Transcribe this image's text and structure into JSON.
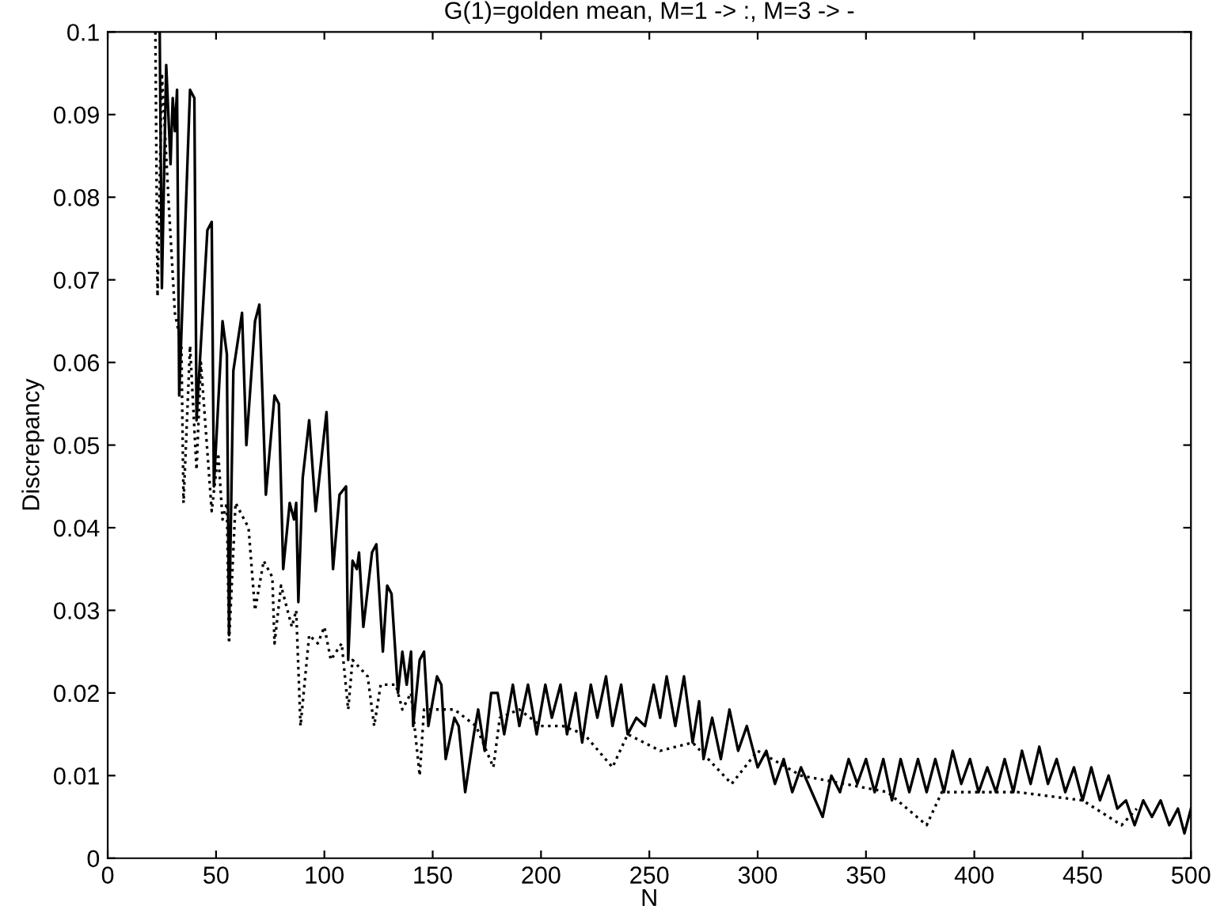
{
  "chart_data": {
    "type": "line",
    "title": "G(1)=golden mean, M=1 -> :, M=3 -> -",
    "xlabel": "N",
    "ylabel": "Discrepancy",
    "xlim": [
      0,
      500
    ],
    "ylim": [
      0,
      0.1
    ],
    "xticks": [
      0,
      50,
      100,
      150,
      200,
      250,
      300,
      350,
      400,
      450,
      500
    ],
    "yticks": [
      0,
      0.01,
      0.02,
      0.03,
      0.04,
      0.05,
      0.06,
      0.07,
      0.08,
      0.09,
      0.1
    ],
    "grid": false,
    "legend": false,
    "series": [
      {
        "color": "#000000",
        "line_style": "dotted",
        "x": [
          22,
          23,
          25,
          28,
          31,
          34,
          35,
          38,
          41,
          43,
          48,
          51,
          53,
          55,
          56,
          59,
          65,
          68,
          72,
          76,
          77,
          80,
          85,
          87,
          89,
          93,
          97,
          100,
          103,
          108,
          111,
          113,
          120,
          123,
          126,
          133,
          136,
          140,
          144,
          146,
          160,
          170,
          178,
          181,
          190,
          200,
          210,
          220,
          233,
          240,
          255,
          270,
          288,
          300,
          320,
          340,
          360,
          378,
          385,
          420,
          450,
          468,
          475
        ],
        "values": [
          0.1,
          0.068,
          0.095,
          0.08,
          0.066,
          0.062,
          0.043,
          0.062,
          0.047,
          0.06,
          0.042,
          0.049,
          0.041,
          0.043,
          0.026,
          0.043,
          0.04,
          0.03,
          0.036,
          0.034,
          0.026,
          0.033,
          0.028,
          0.03,
          0.016,
          0.027,
          0.026,
          0.028,
          0.024,
          0.026,
          0.018,
          0.024,
          0.022,
          0.016,
          0.021,
          0.021,
          0.018,
          0.02,
          0.01,
          0.018,
          0.018,
          0.016,
          0.011,
          0.017,
          0.018,
          0.016,
          0.016,
          0.015,
          0.011,
          0.015,
          0.013,
          0.014,
          0.009,
          0.013,
          0.01,
          0.009,
          0.008,
          0.004,
          0.008,
          0.008,
          0.007,
          0.004,
          0.006
        ]
      },
      {
        "color": "#000000",
        "line_style": "solid",
        "x": [
          24,
          25,
          27,
          29,
          30,
          31,
          32,
          33,
          38,
          40,
          41,
          46,
          48,
          49,
          53,
          55,
          56,
          58,
          62,
          64,
          68,
          70,
          73,
          77,
          79,
          81,
          84,
          86,
          87,
          88,
          90,
          93,
          96,
          101,
          104,
          107,
          110,
          111,
          113,
          115,
          116,
          118,
          122,
          124,
          127,
          129,
          131,
          134,
          136,
          138,
          140,
          141,
          144,
          146,
          148,
          152,
          154,
          156,
          160,
          162,
          165,
          169,
          171,
          174,
          177,
          180,
          183,
          187,
          190,
          194,
          198,
          202,
          205,
          209,
          212,
          216,
          219,
          223,
          226,
          230,
          233,
          237,
          240,
          244,
          248,
          252,
          255,
          258,
          262,
          266,
          270,
          273,
          275,
          279,
          283,
          287,
          291,
          295,
          300,
          304,
          308,
          312,
          316,
          320,
          325,
          330,
          334,
          338,
          342,
          346,
          350,
          354,
          358,
          362,
          366,
          370,
          374,
          378,
          382,
          386,
          390,
          394,
          398,
          402,
          406,
          410,
          414,
          418,
          422,
          426,
          430,
          434,
          438,
          442,
          446,
          450,
          454,
          458,
          462,
          466,
          470,
          474,
          478,
          482,
          486,
          490,
          494,
          497,
          500
        ],
        "values": [
          0.1,
          0.069,
          0.096,
          0.084,
          0.092,
          0.088,
          0.093,
          0.056,
          0.093,
          0.092,
          0.053,
          0.076,
          0.077,
          0.045,
          0.065,
          0.061,
          0.027,
          0.059,
          0.066,
          0.05,
          0.065,
          0.067,
          0.044,
          0.056,
          0.055,
          0.035,
          0.043,
          0.041,
          0.043,
          0.031,
          0.046,
          0.053,
          0.042,
          0.054,
          0.035,
          0.044,
          0.045,
          0.024,
          0.036,
          0.035,
          0.037,
          0.028,
          0.037,
          0.038,
          0.025,
          0.033,
          0.032,
          0.02,
          0.025,
          0.021,
          0.025,
          0.016,
          0.024,
          0.025,
          0.016,
          0.022,
          0.021,
          0.012,
          0.017,
          0.016,
          0.008,
          0.015,
          0.018,
          0.013,
          0.02,
          0.02,
          0.015,
          0.021,
          0.016,
          0.021,
          0.015,
          0.021,
          0.017,
          0.021,
          0.015,
          0.02,
          0.014,
          0.021,
          0.017,
          0.022,
          0.016,
          0.021,
          0.015,
          0.017,
          0.016,
          0.021,
          0.017,
          0.022,
          0.016,
          0.022,
          0.014,
          0.019,
          0.012,
          0.017,
          0.012,
          0.018,
          0.013,
          0.016,
          0.011,
          0.013,
          0.009,
          0.012,
          0.008,
          0.011,
          0.008,
          0.005,
          0.01,
          0.008,
          0.012,
          0.009,
          0.012,
          0.008,
          0.012,
          0.007,
          0.012,
          0.008,
          0.012,
          0.008,
          0.012,
          0.008,
          0.013,
          0.009,
          0.012,
          0.008,
          0.011,
          0.008,
          0.012,
          0.008,
          0.013,
          0.009,
          0.0135,
          0.009,
          0.012,
          0.008,
          0.011,
          0.007,
          0.011,
          0.007,
          0.01,
          0.006,
          0.007,
          0.004,
          0.007,
          0.005,
          0.007,
          0.004,
          0.006,
          0.003,
          0.006
        ]
      }
    ]
  }
}
